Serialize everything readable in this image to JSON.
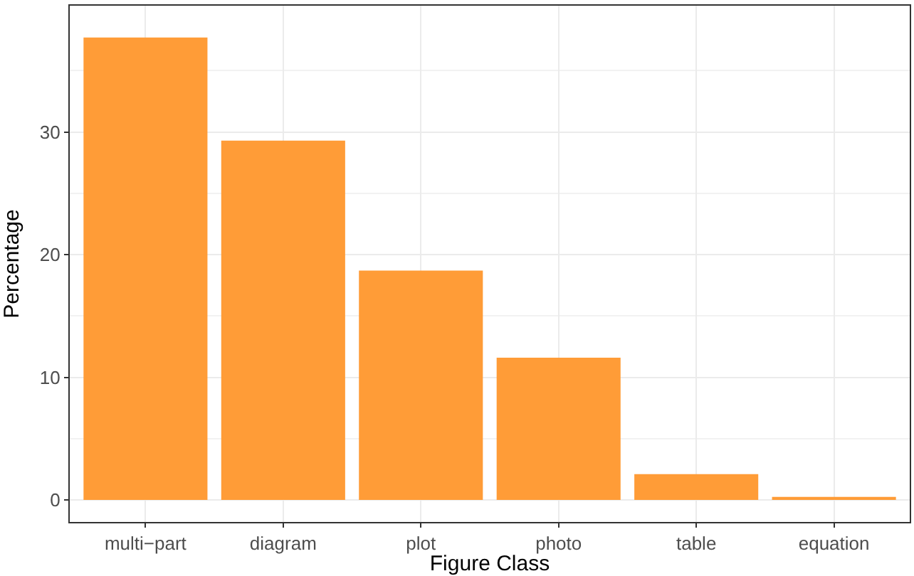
{
  "chart_data": {
    "type": "bar",
    "xlabel": "Figure Class",
    "ylabel": "Percentage",
    "categories": [
      "multi−part",
      "diagram",
      "plot",
      "photo",
      "table",
      "equation"
    ],
    "values": [
      37.7,
      29.3,
      18.7,
      11.6,
      2.1,
      0.25
    ],
    "color": "#ff9c37",
    "ylim": [
      -1.8,
      40.3
    ],
    "yticks": [
      0,
      {
        "value": 5,
        "label": null
      },
      10,
      {
        "value": 15,
        "label": null
      },
      20,
      {
        "value": 25,
        "label": null
      },
      30,
      {
        "value": 35,
        "label": null
      }
    ],
    "grid": true
  }
}
